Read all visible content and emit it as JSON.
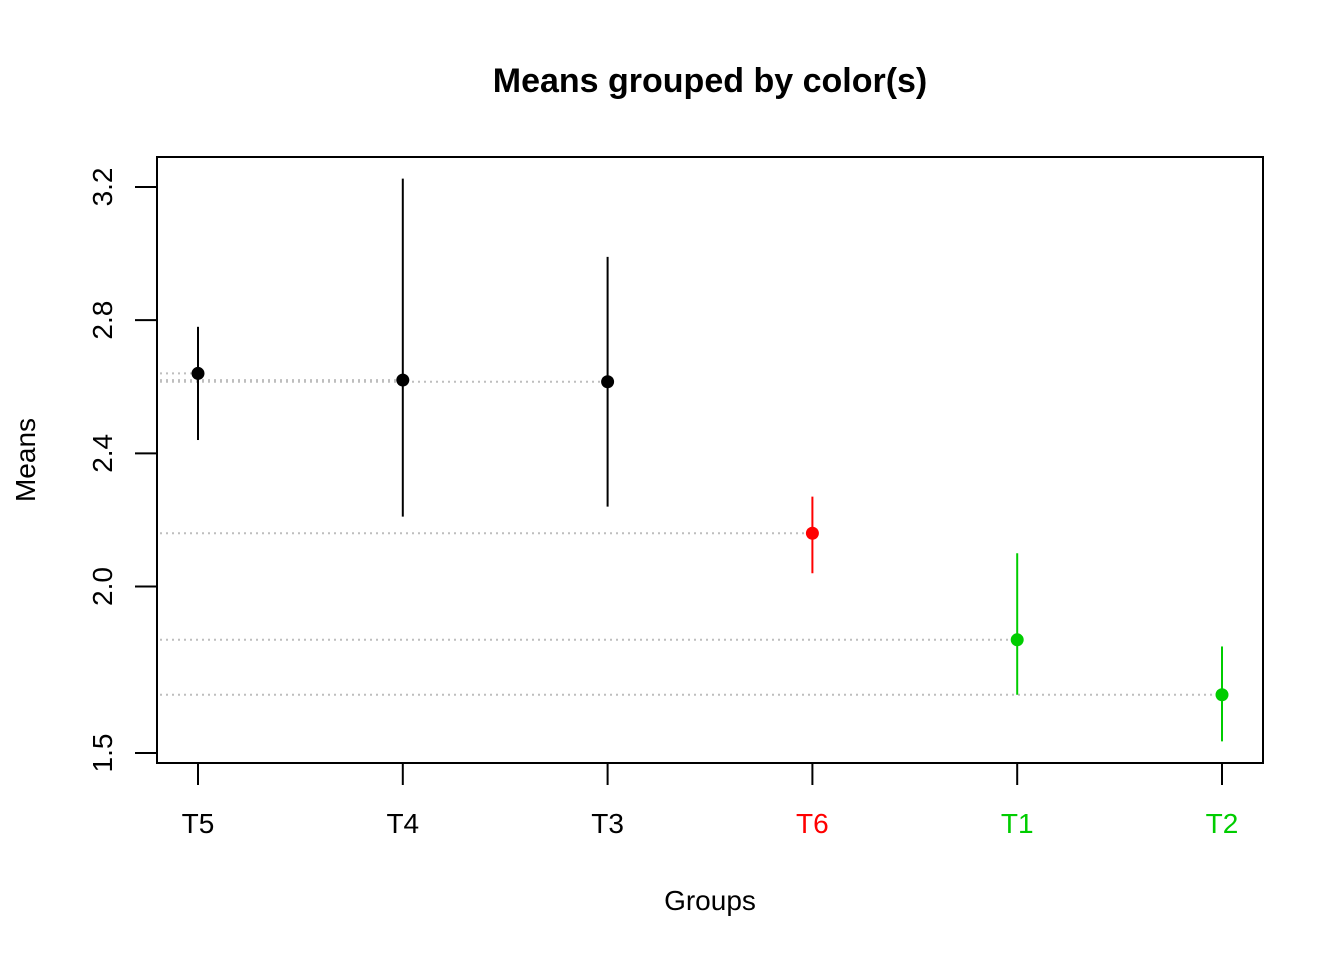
{
  "chart_data": {
    "type": "scatter",
    "title": "Means grouped by color(s)",
    "xlabel": "Groups",
    "ylabel": "Means",
    "ylim": [
      1.47,
      3.29
    ],
    "yticks": [
      "1.5",
      "2.0",
      "2.4",
      "2.8",
      "3.2"
    ],
    "ytick_values": [
      1.5,
      2.0,
      2.4,
      2.8,
      3.2
    ],
    "categories": [
      "T5",
      "T4",
      "T3",
      "T6",
      "T1",
      "T2"
    ],
    "means": [
      2.64,
      2.62,
      2.615,
      2.16,
      1.84,
      1.675
    ],
    "lower": [
      2.44,
      2.21,
      2.24,
      2.04,
      1.675,
      1.535
    ],
    "upper": [
      2.78,
      3.225,
      2.99,
      2.27,
      2.1,
      1.82
    ],
    "colors": [
      "#000000",
      "#000000",
      "#000000",
      "#ff0000",
      "#00cd00",
      "#00cd00"
    ],
    "grid": false,
    "reference_lines": "dotted gray horizontal line at each group mean"
  }
}
